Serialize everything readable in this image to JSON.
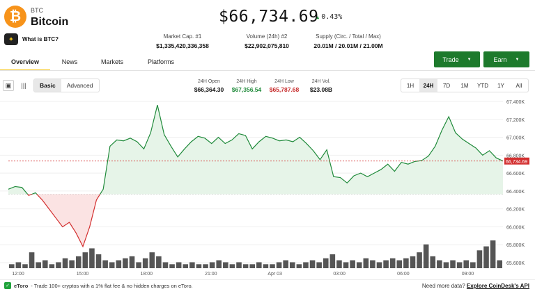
{
  "coin": {
    "logo_glyph": "₿",
    "ticker": "BTC",
    "name": "Bitcoin",
    "what_is_label": "What is BTC?",
    "what_is_badge": "✦"
  },
  "price": {
    "current": "$66,734.69",
    "change_arrow": "▲",
    "change_pct": "0.43%"
  },
  "stats": [
    {
      "label": "Market Cap. #1",
      "value": "$1,335,420,336,358"
    },
    {
      "label": "Volume (24h) #2",
      "value": "$22,902,075,810"
    },
    {
      "label": "Supply (Circ. / Total / Max)",
      "value": "20.01M / 20.01M / 21.00M"
    }
  ],
  "buttons": {
    "trade_label": "Trade",
    "earn_label": "Earn",
    "caret": "▼"
  },
  "tabs": [
    "Overview",
    "News",
    "Markets",
    "Platforms"
  ],
  "chart_toolbar": {
    "candle_icon": "▣",
    "line_icon": "|||",
    "basic_label": "Basic",
    "advanced_label": "Advanced"
  },
  "stats24": [
    {
      "label": "24H Open",
      "value": "$66,364.30",
      "color": "#111111"
    },
    {
      "label": "24H High",
      "value": "$67,356.54",
      "color": "#1f8a3a"
    },
    {
      "label": "24H Low",
      "value": "$65,787.68",
      "color": "#c62828"
    },
    {
      "label": "24H Vol.",
      "value": "$23.08B",
      "color": "#111111"
    }
  ],
  "ranges": [
    "1H",
    "24H",
    "7D",
    "1M",
    "YTD",
    "1Y",
    "All"
  ],
  "chart_data": {
    "type": "line",
    "title": "",
    "open": 66364.3,
    "current": 66734.69,
    "current_label": "66,734.69",
    "ylim": [
      65600,
      67400
    ],
    "y_ticks": [
      "67.400K",
      "67.200K",
      "67.000K",
      "66.800K",
      "66.600K",
      "66.400K",
      "66.200K",
      "66.000K",
      "65.800K",
      "65.600K"
    ],
    "y_tick_values": [
      67400,
      67200,
      67000,
      66800,
      66600,
      66400,
      66200,
      66000,
      65800,
      65600
    ],
    "x_ticks": [
      "12:00",
      "15:00",
      "18:00",
      "21:00",
      "Apr 03",
      "03:00",
      "06:00",
      "09:00"
    ],
    "x_tick_positions": [
      0.0,
      0.129,
      0.257,
      0.386,
      0.514,
      0.643,
      0.771,
      0.9
    ],
    "price_series": [
      66420,
      66450,
      66440,
      66350,
      66380,
      66300,
      66200,
      66100,
      66000,
      66050,
      65930,
      65780,
      66000,
      66300,
      66420,
      66900,
      66970,
      66960,
      66990,
      66950,
      66870,
      67050,
      67360,
      67030,
      66900,
      66780,
      66870,
      66950,
      67010,
      66990,
      66930,
      67000,
      66930,
      66970,
      67040,
      67020,
      66870,
      66950,
      67010,
      66990,
      66960,
      66970,
      66950,
      67000,
      66930,
      66850,
      66750,
      66860,
      66560,
      66550,
      66490,
      66570,
      66600,
      66560,
      66600,
      66640,
      66700,
      66620,
      66720,
      66700,
      66730,
      66740,
      66790,
      66900,
      67080,
      67230,
      67050,
      66980,
      66930,
      66880,
      66800,
      66850,
      66770,
      66735
    ],
    "volume_series": [
      2,
      3,
      2,
      8,
      3,
      4,
      2,
      3,
      5,
      4,
      6,
      8,
      10,
      7,
      4,
      3,
      4,
      5,
      6,
      3,
      5,
      8,
      6,
      3,
      2,
      3,
      2,
      3,
      2,
      2,
      3,
      4,
      3,
      2,
      3,
      2,
      2,
      3,
      2,
      2,
      3,
      4,
      3,
      2,
      3,
      4,
      3,
      5,
      7,
      4,
      3,
      4,
      3,
      5,
      4,
      3,
      4,
      5,
      4,
      5,
      6,
      8,
      12,
      6,
      4,
      3,
      4,
      3,
      4,
      3,
      9,
      11,
      14,
      4
    ]
  },
  "footer": {
    "etoro_icon": "✓",
    "etoro_name": "eToro",
    "promo": "- Trade 100+ cryptos with a 1% flat fee & no hidden charges on eToro.",
    "need_more": "Need more data?",
    "api_link": "Explore CoinDesk's API"
  },
  "colors": {
    "green": "#1f8a3a",
    "red": "#d32f2f",
    "brand_orange": "#f7931a",
    "accent_yellow": "#f5c518",
    "button_green": "#1d7a2c"
  }
}
